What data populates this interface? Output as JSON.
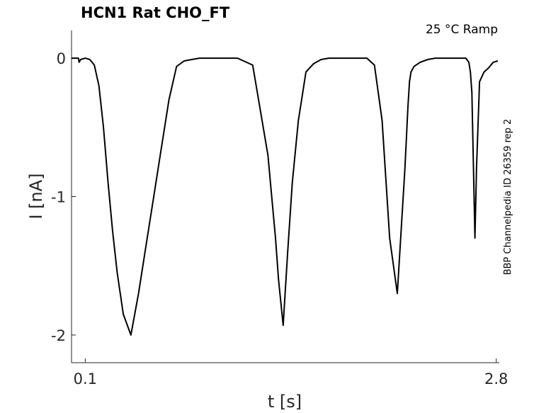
{
  "chart_data": {
    "type": "line",
    "title": "HCN1  Rat  CHO_FT",
    "annotation": "25 °C  Ramp",
    "side_label": "BBP Channelpedia ID 26359 rep 2",
    "xlabel": "t [s]",
    "ylabel": "I [nA]",
    "xlim": [
      0.01,
      2.82
    ],
    "ylim": [
      -2.2,
      0.2
    ],
    "xticks": [
      {
        "value": 0.1,
        "label": "0.1"
      },
      {
        "value": 2.8,
        "label": "2.8"
      }
    ],
    "yticks": [
      {
        "value": 0,
        "label": "0"
      },
      {
        "value": -1,
        "label": "-1"
      },
      {
        "value": -2,
        "label": "-2"
      }
    ],
    "line_color": "#000000",
    "series": [
      {
        "x": [
          0.01,
          0.04,
          0.055,
          0.06,
          0.07,
          0.1,
          0.13,
          0.16,
          0.19,
          0.22,
          0.25,
          0.28,
          0.31,
          0.35,
          0.4,
          0.45,
          0.5,
          0.55,
          0.6,
          0.65,
          0.7,
          0.75,
          0.8,
          0.85,
          0.9,
          0.93,
          0.96,
          1.0,
          1.05,
          1.1,
          1.2,
          1.3,
          1.35,
          1.37,
          1.4,
          1.43,
          1.46,
          1.5,
          1.55,
          1.6,
          1.65,
          1.7,
          1.72,
          1.75,
          1.78,
          1.81,
          1.84,
          1.87,
          1.9,
          1.95,
          2.0,
          2.05,
          2.1,
          2.15,
          2.2,
          2.2,
          2.22,
          2.23,
          2.24,
          2.26,
          2.3,
          2.35,
          2.4,
          2.45,
          2.5,
          2.55,
          2.6,
          2.62,
          2.63,
          2.64,
          2.66,
          2.67,
          2.69,
          2.72,
          2.75,
          2.78,
          2.81
        ],
        "y": [
          0.0,
          0.0,
          0.0,
          -0.03,
          -0.01,
          0.0,
          -0.01,
          -0.05,
          -0.2,
          -0.5,
          -0.9,
          -1.25,
          -1.55,
          -1.85,
          -2.0,
          -1.7,
          -1.35,
          -1.0,
          -0.65,
          -0.3,
          -0.06,
          -0.02,
          -0.01,
          0.0,
          0.0,
          0.0,
          0.0,
          0.0,
          0.0,
          0.0,
          -0.05,
          -0.7,
          -1.3,
          -1.6,
          -1.93,
          -1.4,
          -0.9,
          -0.45,
          -0.1,
          -0.04,
          -0.01,
          0.0,
          0.0,
          0.0,
          0.0,
          0.0,
          0.0,
          0.0,
          0.0,
          0.0,
          -0.05,
          -0.45,
          -1.3,
          -1.7,
          -0.8,
          -0.8,
          -0.35,
          -0.17,
          -0.1,
          -0.06,
          -0.03,
          -0.01,
          0.0,
          0.0,
          0.0,
          0.0,
          0.0,
          -0.03,
          -0.1,
          -0.25,
          -1.3,
          -0.8,
          -0.17,
          -0.1,
          -0.07,
          -0.03,
          -0.02
        ]
      }
    ]
  }
}
